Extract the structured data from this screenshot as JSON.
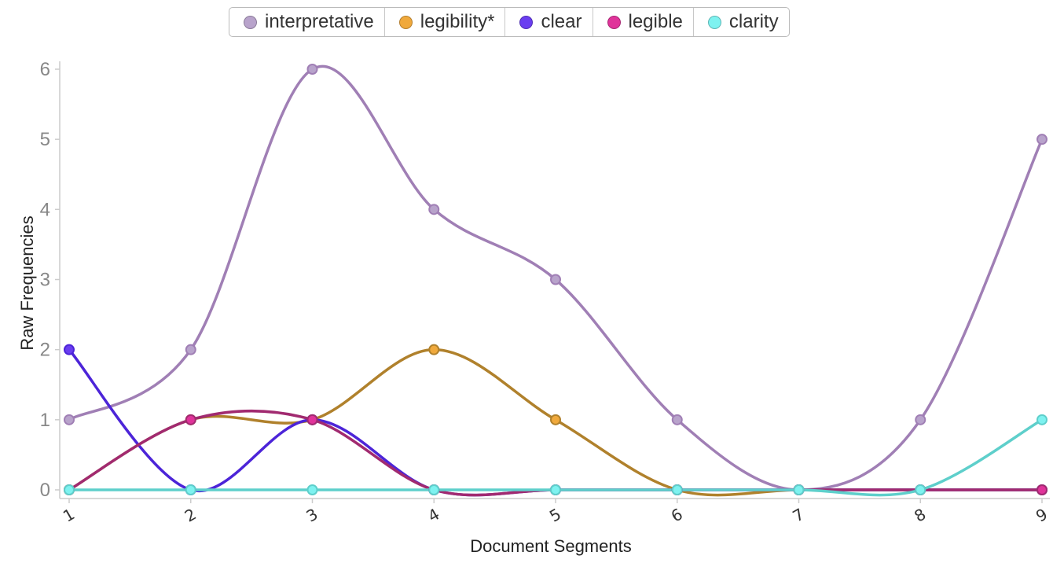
{
  "chart_data": {
    "type": "line",
    "xlabel": "Document Segments",
    "ylabel": "Raw Frequencies",
    "x": [
      1,
      2,
      3,
      4,
      5,
      6,
      7,
      8,
      9
    ],
    "x_tick_labels": [
      "1",
      "2",
      "3",
      "4",
      "5",
      "6",
      "7",
      "8",
      "9"
    ],
    "y_ticks": [
      "0",
      "1",
      "2",
      "3",
      "4",
      "5",
      "6"
    ],
    "ylim": [
      0,
      6
    ],
    "grid": false,
    "legend_position": "top-center",
    "series": [
      {
        "name": "interpretative",
        "color": "#a07fb5",
        "legend_color": "#b8a3cb",
        "values": [
          1,
          2,
          6,
          4,
          3,
          1,
          0,
          1,
          5
        ]
      },
      {
        "name": "legibility*",
        "color": "#b0812c",
        "legend_color": "#f0a93c",
        "values": [
          0,
          1,
          1,
          2,
          1,
          0,
          0,
          0,
          0
        ]
      },
      {
        "name": "clear",
        "color": "#4c24d8",
        "legend_color": "#6a3ef0",
        "values": [
          2,
          0,
          1,
          0,
          0,
          0,
          0,
          0,
          0
        ]
      },
      {
        "name": "legible",
        "color": "#a12a70",
        "legend_color": "#e0339a",
        "values": [
          0,
          1,
          1,
          0,
          0,
          0,
          0,
          0,
          0
        ]
      },
      {
        "name": "clarity",
        "color": "#5ecfcb",
        "legend_color": "#7ef2f0",
        "values": [
          0,
          0,
          0,
          0,
          0,
          0,
          0,
          0,
          1
        ]
      }
    ]
  }
}
